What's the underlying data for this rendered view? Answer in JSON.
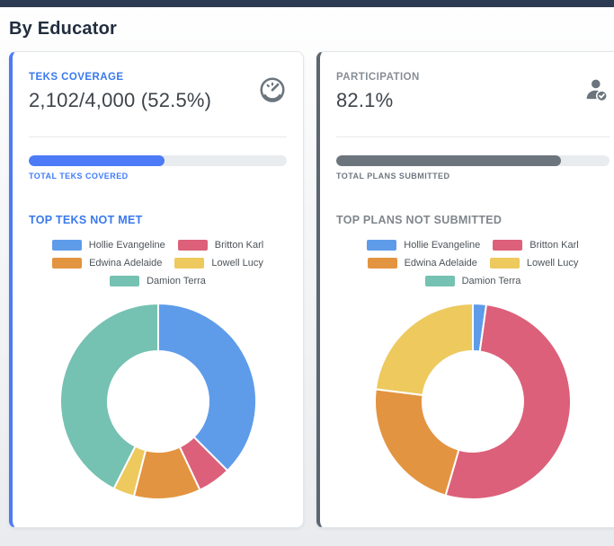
{
  "page": {
    "heading": "By Educator"
  },
  "theme": {
    "topbar_color": "#2c3b52",
    "blue_accent": "#4d7af7",
    "gray_accent": "#6c757d",
    "progress_track": "#e9ecef"
  },
  "cards": [
    {
      "title": "TEKS COVERAGE",
      "value": "2,102/4,000 (52.5%)",
      "icon": "gauge-icon",
      "accent": "#4d7af7",
      "progress_percent": 52.5,
      "progress_label": "TOTAL TEKS COVERED"
    },
    {
      "title": "PARTICIPATION",
      "value": "82.1%",
      "icon": "user-check-icon",
      "accent": "#6c757d",
      "progress_percent": 82.1,
      "progress_label": "TOTAL PLANS SUBMITTED"
    }
  ],
  "chart_data": [
    {
      "type": "pie",
      "subtype": "donut",
      "title": "TOP TEKS NOT MET",
      "labels": [
        "Hollie Evangeline",
        "Britton Karl",
        "Edwina Adelaide",
        "Lowell Lucy",
        "Damion Terra"
      ],
      "values": [
        37.5,
        5.5,
        11,
        3.5,
        42.5
      ],
      "colors": [
        "#5e9cea",
        "#dc6079",
        "#e39440",
        "#edc95e",
        "#75c1b2"
      ],
      "legend_position": "top"
    },
    {
      "type": "pie",
      "subtype": "donut",
      "title": "TOP PLANS NOT SUBMITTED",
      "labels": [
        "Hollie Evangeline",
        "Britton Karl",
        "Edwina Adelaide",
        "Lowell Lucy",
        "Damion Terra"
      ],
      "values": [
        2.2,
        52.3,
        22.5,
        23,
        0
      ],
      "colors": [
        "#5e9cea",
        "#dc6079",
        "#e39440",
        "#edc95e",
        "#75c1b2"
      ],
      "legend_position": "top"
    }
  ]
}
